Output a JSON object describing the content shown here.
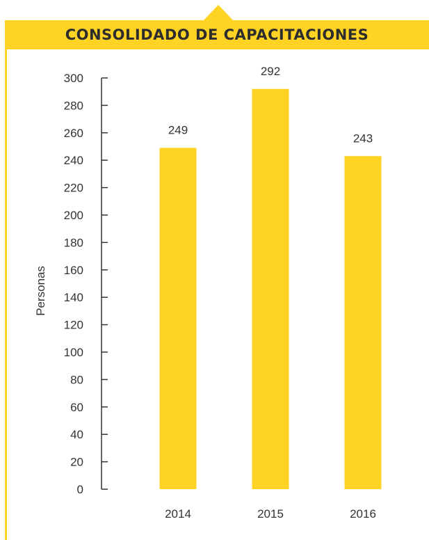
{
  "title": "CONSOLIDADO DE CAPACITACIONES",
  "colors": {
    "accent": "#ffd324",
    "bar": "#ffd324",
    "text": "#333333",
    "axis": "#333333"
  },
  "chart_data": {
    "type": "bar",
    "title": "CONSOLIDADO DE CAPACITACIONES",
    "categories": [
      "2014",
      "2015",
      "2016"
    ],
    "values": [
      249,
      292,
      243
    ],
    "ylabel": "Personas",
    "xlabel": "",
    "ylim": [
      0,
      300
    ],
    "yticks": [
      0,
      20,
      40,
      60,
      80,
      100,
      120,
      140,
      160,
      180,
      200,
      220,
      240,
      260,
      280,
      300
    ],
    "grid": false,
    "legend": "none",
    "data_labels": [
      "249",
      "292",
      "243"
    ]
  }
}
